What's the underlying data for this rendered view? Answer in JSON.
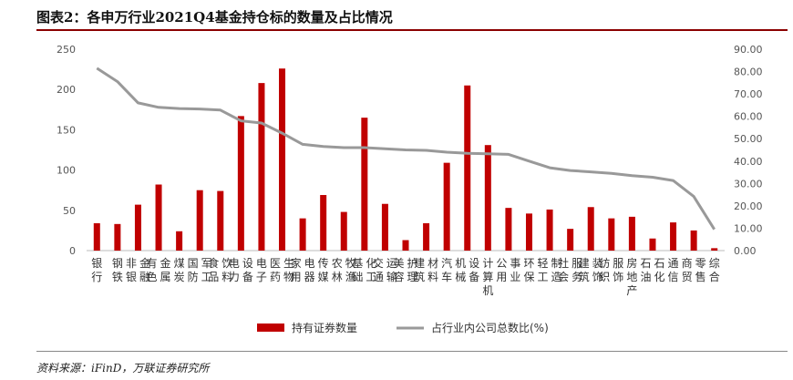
{
  "header": {
    "title": "图表2：各申万行业2021Q4基金持仓标的数量及占比情况"
  },
  "footer": {
    "source": "资料来源：iFinD，万联证券研究所"
  },
  "colors": {
    "bar": "#c00000",
    "line": "#999999",
    "rule": "#8b0000"
  },
  "chart_data": {
    "type": "bar",
    "title": "",
    "categories": [
      "银行",
      "钢铁",
      "非银金融",
      "有色金属",
      "煤炭",
      "国防军工",
      "食品饮料",
      "电力设备",
      "电子",
      "医药生物",
      "家用电器",
      "传媒",
      "农林牧渔",
      "基础化工",
      "交通运输",
      "美容护理",
      "建筑材料",
      "汽车",
      "机械设备",
      "计算机",
      "公用事业",
      "环保",
      "轻工制造",
      "社会服务",
      "建筑装饰",
      "纺织服饰",
      "房地产",
      "石油石化",
      "通信",
      "商贸零售",
      "综合"
    ],
    "series": [
      {
        "name": "持有证券数量",
        "type": "bar",
        "axis": "left",
        "values": [
          34,
          33,
          57,
          82,
          24,
          75,
          74,
          167,
          208,
          226,
          40,
          69,
          48,
          165,
          58,
          13,
          34,
          109,
          205,
          131,
          53,
          46,
          51,
          27,
          54,
          40,
          42,
          15,
          35,
          25,
          3
        ]
      },
      {
        "name": "占行业内公司总数比(%)",
        "type": "line",
        "axis": "right",
        "values": [
          81.5,
          75.5,
          66.0,
          64.0,
          63.5,
          63.3,
          62.8,
          58.0,
          57.0,
          52.5,
          47.5,
          46.5,
          46.0,
          46.0,
          45.5,
          45.0,
          44.8,
          44.0,
          43.5,
          43.3,
          43.0,
          40.0,
          37.0,
          35.8,
          35.2,
          34.5,
          33.5,
          32.8,
          31.3,
          24.2,
          9.5
        ]
      }
    ],
    "y_left": {
      "min": 0,
      "max": 250,
      "ticks": [
        "0",
        "50",
        "100",
        "150",
        "200",
        "250"
      ]
    },
    "y_right": {
      "min": 0,
      "max": 90,
      "ticks": [
        "0.00",
        "10.00",
        "20.00",
        "30.00",
        "40.00",
        "50.00",
        "60.00",
        "70.00",
        "80.00",
        "90.00"
      ]
    },
    "legend": {
      "position": "bottom"
    },
    "grid": false
  }
}
